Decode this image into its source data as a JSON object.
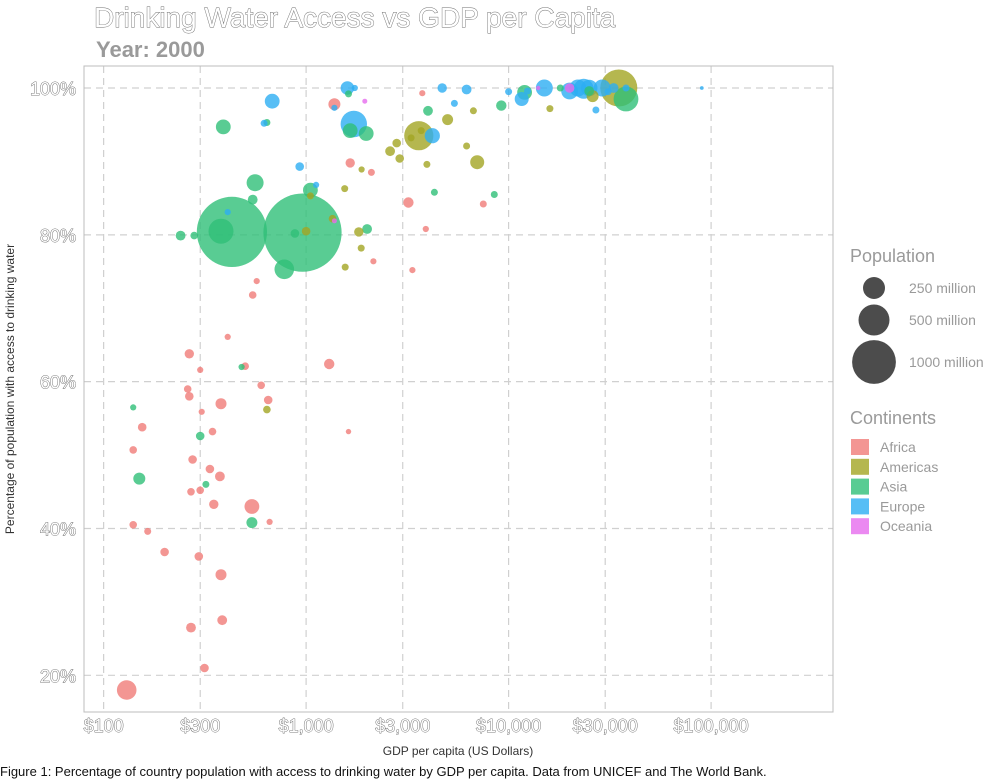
{
  "chart_data": {
    "type": "scatter",
    "title": "Drinking Water Access vs GDP per Capita",
    "subtitle": "Year: 2000",
    "xlabel": "GDP per capita (US Dollars)",
    "ylabel": "Percentage of population with access to drinking water",
    "caption": "Figure 1: Percentage of country population with access to drinking water by GDP per capita. Data from UNICEF and The World Bank.",
    "x_scale": "log",
    "xlim": [
      80,
      400000
    ],
    "ylim": [
      15,
      103
    ],
    "x_ticks": [
      {
        "value": 100,
        "label": "$100"
      },
      {
        "value": 300,
        "label": "$300"
      },
      {
        "value": 1000,
        "label": "$1,000"
      },
      {
        "value": 3000,
        "label": "$3,000"
      },
      {
        "value": 10000,
        "label": "$10,000"
      },
      {
        "value": 30000,
        "label": "$30,000"
      },
      {
        "value": 100000,
        "label": "$100,000"
      }
    ],
    "y_ticks": [
      {
        "value": 20,
        "label": "20%"
      },
      {
        "value": 40,
        "label": "40%"
      },
      {
        "value": 60,
        "label": "60%"
      },
      {
        "value": 80,
        "label": "80%"
      },
      {
        "value": 100,
        "label": "100%"
      }
    ],
    "grid": true,
    "legend_position": "right",
    "size_legend": {
      "title": "Population",
      "entries": [
        {
          "value": 250,
          "label": "250 million"
        },
        {
          "value": 500,
          "label": "500 million"
        },
        {
          "value": 1000,
          "label": "1000 million"
        }
      ]
    },
    "color_legend": {
      "title": "Continents",
      "entries": [
        {
          "name": "Africa",
          "color": "#F07C78"
        },
        {
          "name": "Americas",
          "color": "#A3A523"
        },
        {
          "name": "Asia",
          "color": "#2FBF78"
        },
        {
          "name": "Europe",
          "color": "#2DAEF2"
        },
        {
          "name": "Oceania",
          "color": "#E66BEE"
        }
      ]
    },
    "series": [
      {
        "name": "Africa",
        "points": [
          {
            "x": 130,
            "y": 18,
            "pop": 80
          },
          {
            "x": 140,
            "y": 40.5,
            "pop": 12
          },
          {
            "x": 140,
            "y": 50.7,
            "pop": 12
          },
          {
            "x": 155,
            "y": 53.8,
            "pop": 15
          },
          {
            "x": 165,
            "y": 39.6,
            "pop": 10
          },
          {
            "x": 200,
            "y": 36.8,
            "pop": 15
          },
          {
            "x": 260,
            "y": 59,
            "pop": 12
          },
          {
            "x": 265,
            "y": 58,
            "pop": 15
          },
          {
            "x": 265,
            "y": 63.8,
            "pop": 18
          },
          {
            "x": 270,
            "y": 45,
            "pop": 12
          },
          {
            "x": 270,
            "y": 26.5,
            "pop": 20
          },
          {
            "x": 275,
            "y": 49.4,
            "pop": 15
          },
          {
            "x": 295,
            "y": 36.2,
            "pop": 15
          },
          {
            "x": 300,
            "y": 45.2,
            "pop": 12
          },
          {
            "x": 300,
            "y": 61.6,
            "pop": 8
          },
          {
            "x": 305,
            "y": 55.9,
            "pop": 8
          },
          {
            "x": 315,
            "y": 21,
            "pop": 15
          },
          {
            "x": 335,
            "y": 48.1,
            "pop": 15
          },
          {
            "x": 350,
            "y": 43.3,
            "pop": 18
          },
          {
            "x": 345,
            "y": 53.2,
            "pop": 12
          },
          {
            "x": 375,
            "y": 47.1,
            "pop": 20
          },
          {
            "x": 380,
            "y": 57,
            "pop": 25
          },
          {
            "x": 380,
            "y": 33.7,
            "pop": 25
          },
          {
            "x": 385,
            "y": 27.5,
            "pop": 20
          },
          {
            "x": 410,
            "y": 66.1,
            "pop": 8
          },
          {
            "x": 500,
            "y": 62.1,
            "pop": 12
          },
          {
            "x": 540,
            "y": 43,
            "pop": 45
          },
          {
            "x": 545,
            "y": 71.8,
            "pop": 12
          },
          {
            "x": 570,
            "y": 73.7,
            "pop": 8
          },
          {
            "x": 600,
            "y": 59.5,
            "pop": 12
          },
          {
            "x": 650,
            "y": 57.5,
            "pop": 15
          },
          {
            "x": 660,
            "y": 40.9,
            "pop": 8
          },
          {
            "x": 1300,
            "y": 62.4,
            "pop": 22
          },
          {
            "x": 1380,
            "y": 97.8,
            "pop": 30
          },
          {
            "x": 1620,
            "y": 53.2,
            "pop": 6
          },
          {
            "x": 1650,
            "y": 89.8,
            "pop": 18
          },
          {
            "x": 2100,
            "y": 88.5,
            "pop": 10
          },
          {
            "x": 2150,
            "y": 76.4,
            "pop": 8
          },
          {
            "x": 3200,
            "y": 84.4,
            "pop": 22
          },
          {
            "x": 3350,
            "y": 75.2,
            "pop": 8
          },
          {
            "x": 3750,
            "y": 99.3,
            "pop": 8
          },
          {
            "x": 3900,
            "y": 80.8,
            "pop": 8
          },
          {
            "x": 7500,
            "y": 84.2,
            "pop": 10
          }
        ]
      },
      {
        "name": "Americas",
        "points": [
          {
            "x": 640,
            "y": 56.2,
            "pop": 12
          },
          {
            "x": 1000,
            "y": 80.5,
            "pop": 15
          },
          {
            "x": 1050,
            "y": 85.3,
            "pop": 10
          },
          {
            "x": 1350,
            "y": 82.2,
            "pop": 12
          },
          {
            "x": 1550,
            "y": 86.3,
            "pop": 10
          },
          {
            "x": 1560,
            "y": 75.6,
            "pop": 10
          },
          {
            "x": 1820,
            "y": 80.4,
            "pop": 18
          },
          {
            "x": 1880,
            "y": 88.9,
            "pop": 8
          },
          {
            "x": 1870,
            "y": 78.2,
            "pop": 10
          },
          {
            "x": 2600,
            "y": 91.4,
            "pop": 20
          },
          {
            "x": 2800,
            "y": 92.5,
            "pop": 15
          },
          {
            "x": 2900,
            "y": 90.4,
            "pop": 15
          },
          {
            "x": 3300,
            "y": 93.2,
            "pop": 10
          },
          {
            "x": 3600,
            "y": 93.5,
            "pop": 175
          },
          {
            "x": 3700,
            "y": 94.2,
            "pop": 10
          },
          {
            "x": 3950,
            "y": 89.6,
            "pop": 10
          },
          {
            "x": 5000,
            "y": 95.7,
            "pop": 25
          },
          {
            "x": 6200,
            "y": 92.1,
            "pop": 10
          },
          {
            "x": 6700,
            "y": 96.9,
            "pop": 10
          },
          {
            "x": 7000,
            "y": 89.9,
            "pop": 40
          },
          {
            "x": 16000,
            "y": 97.2,
            "pop": 10
          },
          {
            "x": 26000,
            "y": 98.9,
            "pop": 30
          },
          {
            "x": 35000,
            "y": 100,
            "pop": 282
          }
        ]
      },
      {
        "name": "Asia",
        "points": [
          {
            "x": 140,
            "y": 56.5,
            "pop": 8
          },
          {
            "x": 150,
            "y": 46.8,
            "pop": 30
          },
          {
            "x": 240,
            "y": 79.9,
            "pop": 20
          },
          {
            "x": 280,
            "y": 79.9,
            "pop": 12
          },
          {
            "x": 300,
            "y": 52.6,
            "pop": 15
          },
          {
            "x": 320,
            "y": 46,
            "pop": 10
          },
          {
            "x": 380,
            "y": 80.5,
            "pop": 130
          },
          {
            "x": 390,
            "y": 94.7,
            "pop": 45
          },
          {
            "x": 430,
            "y": 80.4,
            "pop": 1016
          },
          {
            "x": 480,
            "y": 62,
            "pop": 8
          },
          {
            "x": 540,
            "y": 40.8,
            "pop": 25
          },
          {
            "x": 545,
            "y": 84.8,
            "pop": 20
          },
          {
            "x": 560,
            "y": 87.1,
            "pop": 60
          },
          {
            "x": 640,
            "y": 95.3,
            "pop": 10
          },
          {
            "x": 780,
            "y": 75.3,
            "pop": 80
          },
          {
            "x": 880,
            "y": 80.2,
            "pop": 15
          },
          {
            "x": 960,
            "y": 80.3,
            "pop": 1262
          },
          {
            "x": 1050,
            "y": 86.1,
            "pop": 45
          },
          {
            "x": 1620,
            "y": 99.2,
            "pop": 10
          },
          {
            "x": 1650,
            "y": 94.2,
            "pop": 45
          },
          {
            "x": 1980,
            "y": 93.8,
            "pop": 45
          },
          {
            "x": 2000,
            "y": 80.8,
            "pop": 20
          },
          {
            "x": 4000,
            "y": 96.9,
            "pop": 20
          },
          {
            "x": 4300,
            "y": 85.8,
            "pop": 10
          },
          {
            "x": 8500,
            "y": 85.5,
            "pop": 10
          },
          {
            "x": 9200,
            "y": 97.6,
            "pop": 22
          },
          {
            "x": 12000,
            "y": 99.4,
            "pop": 45
          },
          {
            "x": 18000,
            "y": 100,
            "pop": 10
          },
          {
            "x": 25000,
            "y": 99.6,
            "pop": 20
          },
          {
            "x": 38000,
            "y": 98.5,
            "pop": 127
          }
        ]
      },
      {
        "name": "Europe",
        "points": [
          {
            "x": 410,
            "y": 83.1,
            "pop": 8
          },
          {
            "x": 620,
            "y": 95.2,
            "pop": 10
          },
          {
            "x": 680,
            "y": 98.2,
            "pop": 45
          },
          {
            "x": 930,
            "y": 89.3,
            "pop": 15
          },
          {
            "x": 1120,
            "y": 86.8,
            "pop": 8
          },
          {
            "x": 1380,
            "y": 97.3,
            "pop": 8
          },
          {
            "x": 1600,
            "y": 100,
            "pop": 38
          },
          {
            "x": 1720,
            "y": 95.1,
            "pop": 145
          },
          {
            "x": 1740,
            "y": 100,
            "pop": 8
          },
          {
            "x": 4200,
            "y": 93.5,
            "pop": 48
          },
          {
            "x": 4700,
            "y": 100,
            "pop": 18
          },
          {
            "x": 5400,
            "y": 97.9,
            "pop": 10
          },
          {
            "x": 6200,
            "y": 99.8,
            "pop": 20
          },
          {
            "x": 10000,
            "y": 99.5,
            "pop": 10
          },
          {
            "x": 11600,
            "y": 98.5,
            "pop": 40
          },
          {
            "x": 12400,
            "y": 99.6,
            "pop": 10
          },
          {
            "x": 15000,
            "y": 100,
            "pop": 60
          },
          {
            "x": 20000,
            "y": 99.6,
            "pop": 59
          },
          {
            "x": 22000,
            "y": 100,
            "pop": 60
          },
          {
            "x": 23500,
            "y": 99.9,
            "pop": 82
          },
          {
            "x": 25000,
            "y": 100,
            "pop": 57
          },
          {
            "x": 27000,
            "y": 97,
            "pop": 10
          },
          {
            "x": 29000,
            "y": 100,
            "pop": 60
          },
          {
            "x": 31000,
            "y": 99.5,
            "pop": 10
          },
          {
            "x": 33000,
            "y": 100,
            "pop": 20
          },
          {
            "x": 38000,
            "y": 100,
            "pop": 10
          },
          {
            "x": 90000,
            "y": 100,
            "pop": 3
          }
        ]
      },
      {
        "name": "Oceania",
        "points": [
          {
            "x": 1380,
            "y": 81.9,
            "pop": 5
          },
          {
            "x": 1950,
            "y": 98.2,
            "pop": 5
          },
          {
            "x": 20000,
            "y": 100,
            "pop": 19
          },
          {
            "x": 14000,
            "y": 100,
            "pop": 4
          }
        ]
      }
    ]
  }
}
